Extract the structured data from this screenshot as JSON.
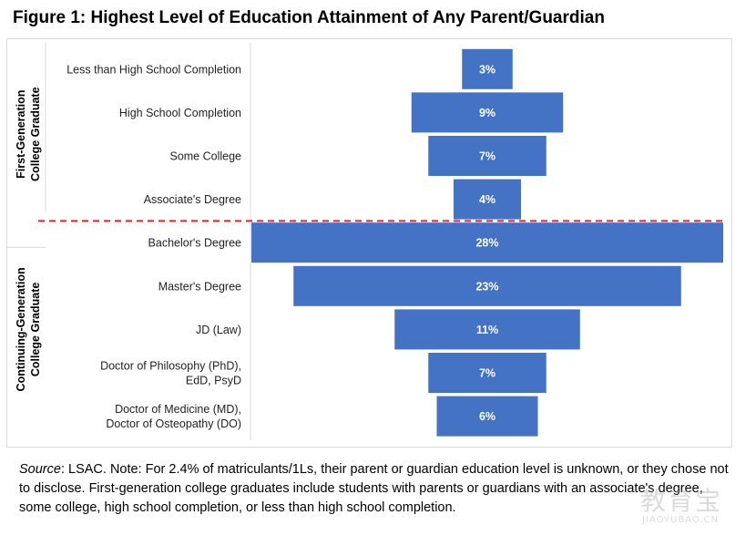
{
  "figure_title": "Figure 1: Highest Level of Education Attainment of Any Parent/Guardian",
  "chart_data": {
    "type": "bar",
    "orientation": "horizontal-centered",
    "categories": [
      "Less than High School Completion",
      "High School Completion",
      "Some College",
      "Associate's Degree",
      "Bachelor's Degree",
      "Master's Degree",
      "JD (Law)",
      "Doctor of Philosophy (PhD), EdD, PsyD",
      "Doctor of Medicine (MD), Doctor of Osteopathy (DO)"
    ],
    "category_lines": [
      [
        "Less than High School Completion"
      ],
      [
        "High School Completion"
      ],
      [
        "Some College"
      ],
      [
        "Associate's Degree"
      ],
      [
        "Bachelor's Degree"
      ],
      [
        "Master's Degree"
      ],
      [
        "JD (Law)"
      ],
      [
        "Doctor of Philosophy (PhD),",
        "EdD, PsyD"
      ],
      [
        "Doctor of Medicine (MD),",
        "Doctor of Osteopathy (DO)"
      ]
    ],
    "values": [
      3,
      9,
      7,
      4,
      28,
      23,
      11,
      7,
      6
    ],
    "value_labels": [
      "3%",
      "9%",
      "7%",
      "4%",
      "28%",
      "23%",
      "11%",
      "7%",
      "6%"
    ],
    "unit": "%",
    "groups": [
      {
        "lines": [
          "First-Generation",
          "College Graduate"
        ],
        "categories": [
          0,
          1,
          2,
          3
        ]
      },
      {
        "lines": [
          "Continuing-Generation",
          "College Graduate"
        ],
        "categories": [
          4,
          5,
          6,
          7,
          8
        ]
      }
    ],
    "separator": {
      "after_category_index": 3,
      "style": "dashed",
      "color": "#e8242b"
    },
    "colors": {
      "bar": "#4472c4",
      "bar_label": "#ffffff"
    },
    "xlim": [
      0,
      28
    ],
    "grid": false,
    "legend": "none"
  },
  "source": {
    "prefix": "Source",
    "text": ": LSAC. Note: For 2.4% of matriculants/1Ls, their parent or guardian education level is unknown, or they chose not to disclose. First-generation college graduates include students with parents or guardians with an associate's degree, some college, high school completion, or less than high school completion."
  },
  "watermark": {
    "cn": "教育宝",
    "en": "JIAOYUBAO.CN"
  }
}
